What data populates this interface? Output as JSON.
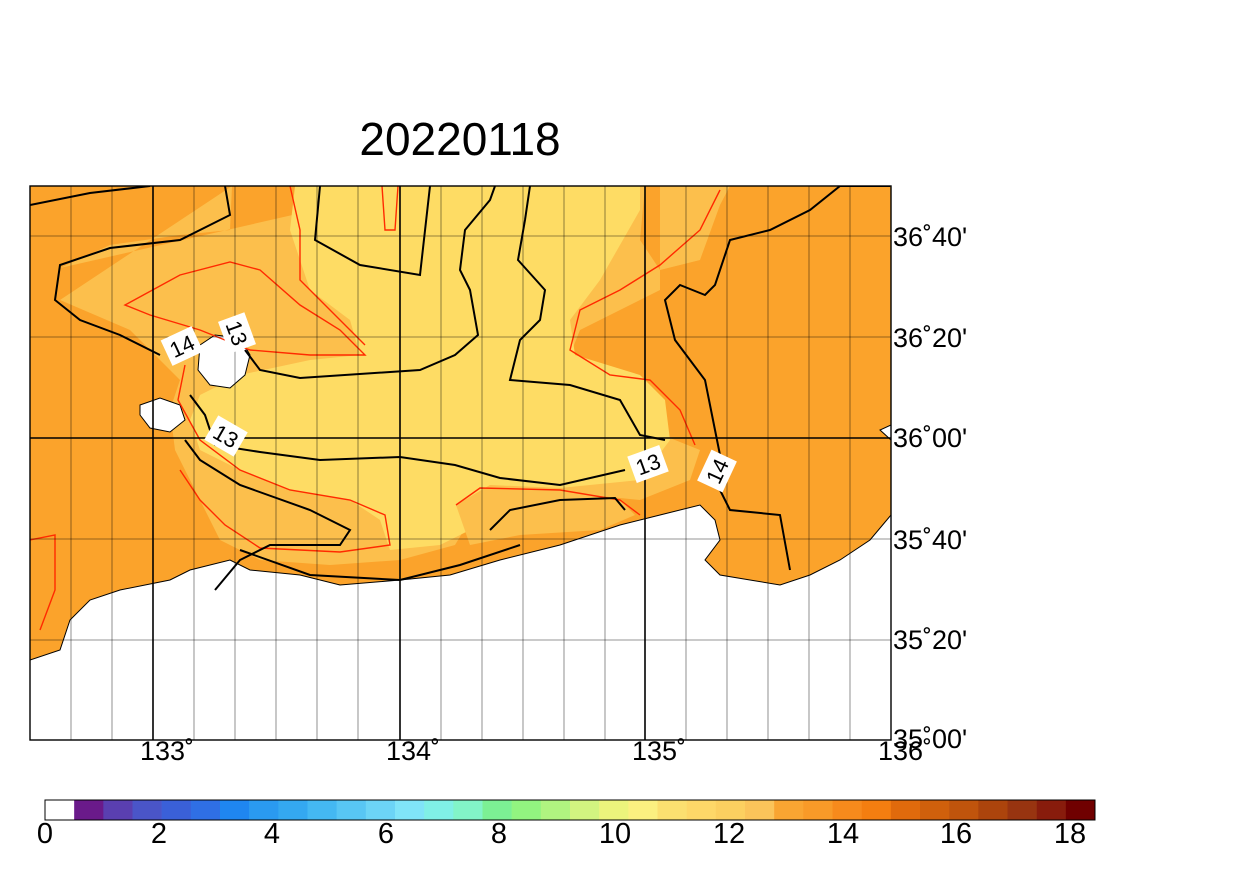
{
  "title": "20220118",
  "lon_ticks": [
    "133˚",
    "134˚",
    "135˚",
    "136˚"
  ],
  "lat_ticks": [
    "36˚40'",
    "36˚20'",
    "36˚00'",
    "35˚40'",
    "35˚20'",
    "35˚00'"
  ],
  "contour_labels": [
    "14",
    "13",
    "13",
    "13",
    "14"
  ],
  "colorbar": {
    "labels": [
      "0",
      "2",
      "4",
      "6",
      "8",
      "10",
      "12",
      "14",
      "16",
      "18"
    ],
    "colors": [
      "#ffffff",
      "#6a1a8a",
      "#5a3fb0",
      "#4a55c8",
      "#3a60d8",
      "#2f6fe4",
      "#1f86f0",
      "#2a9af0",
      "#34a8f0",
      "#44b8f2",
      "#58c6f4",
      "#6cd4f6",
      "#80e4f8",
      "#80f0e6",
      "#82f4c8",
      "#7cf094",
      "#92f480",
      "#b0f480",
      "#d2f480",
      "#ecf47c",
      "#fcf080",
      "#fce070",
      "#fed868",
      "#fcd060",
      "#fbc45a",
      "#f9a532",
      "#f89a28",
      "#f78a1c",
      "#f47e10",
      "#e06a0c",
      "#d0600c",
      "#c0540c",
      "#ac440c",
      "#983410",
      "#881c0c",
      "#700000"
    ]
  },
  "palette": {
    "orange": "#fba32b",
    "light_orange": "#fcbf4c",
    "yellow": "#fedc64",
    "land": "#ffffff",
    "contour_black": "#000000",
    "contour_red": "#ff2a00"
  }
}
